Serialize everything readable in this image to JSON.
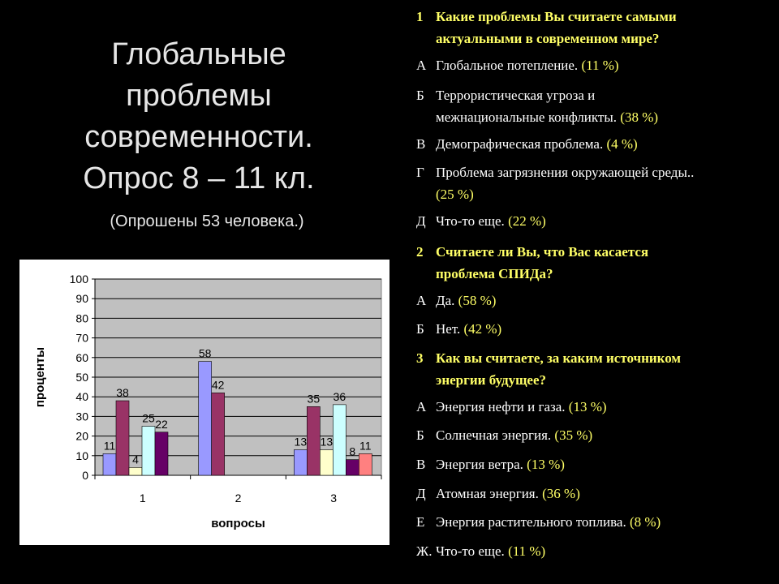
{
  "title_lines": [
    "Глобальные",
    "проблемы",
    "современности.",
    "Опрос 8 – 11 кл."
  ],
  "subtitle": "(Опрошены 53 человека.)",
  "chart_data": {
    "type": "bar",
    "categories": [
      "1",
      "2",
      "3"
    ],
    "xlabel": "вопросы",
    "ylabel": "проценты",
    "ylim": [
      0,
      100
    ],
    "yticks": [
      0,
      10,
      20,
      30,
      40,
      50,
      60,
      70,
      80,
      90,
      100
    ],
    "grid": true,
    "legend": "none",
    "groups": [
      {
        "category": "1",
        "bars": [
          {
            "value": 11,
            "label": "11",
            "color": "#9999ff"
          },
          {
            "value": 38,
            "label": "38",
            "color": "#993366"
          },
          {
            "value": 4,
            "label": "4",
            "color": "#ffffcc"
          },
          {
            "value": 25,
            "label": "25",
            "color": "#ccffff"
          },
          {
            "value": 22,
            "label": "22",
            "color": "#660066"
          }
        ]
      },
      {
        "category": "2",
        "bars": [
          {
            "value": 58,
            "label": "58",
            "color": "#9999ff"
          },
          {
            "value": 42,
            "label": "42",
            "color": "#993366"
          }
        ]
      },
      {
        "category": "3",
        "bars": [
          {
            "value": 13,
            "label": "13",
            "color": "#9999ff"
          },
          {
            "value": 35,
            "label": "35",
            "color": "#993366"
          },
          {
            "value": 13,
            "label": "13",
            "color": "#ffffcc"
          },
          {
            "value": 36,
            "label": "36",
            "color": "#ccffff"
          },
          {
            "value": 8,
            "label": "8",
            "color": "#660066"
          },
          {
            "value": 11,
            "label": "11",
            "color": "#ff8080"
          }
        ]
      }
    ]
  },
  "survey": [
    {
      "type": "q",
      "marker": "1",
      "lines": [
        "Какие проблемы Вы считаете самыми",
        "актуальными в современном мире?"
      ]
    },
    {
      "type": "a",
      "marker": "А",
      "lines": [
        "Глобальное потепление."
      ],
      "pct": "(11 %)"
    },
    {
      "type": "a",
      "marker": "Б",
      "lines": [
        "Террористическая угроза и",
        "межнациональные конфликты."
      ],
      "pct": "(38 %)"
    },
    {
      "type": "a",
      "marker": "В",
      "lines": [
        "Демографическая проблема."
      ],
      "pct": "(4 %)"
    },
    {
      "type": "a",
      "marker": "Г",
      "lines": [
        "Проблема загрязнения окружающей среды.."
      ],
      "pct": "(25 %)",
      "pct_newline": true
    },
    {
      "type": "a",
      "marker": "Д",
      "lines": [
        "Что-то еще."
      ],
      "pct": "(22 %)"
    },
    {
      "type": "q",
      "marker": "2",
      "lines": [
        "Считаете ли Вы, что Вас касается",
        "проблема СПИДа?"
      ]
    },
    {
      "type": "a",
      "marker": "А",
      "lines": [
        "Да."
      ],
      "pct": "(58 %)"
    },
    {
      "type": "a",
      "marker": "Б",
      "lines": [
        "Нет."
      ],
      "pct": "(42 %)"
    },
    {
      "type": "q",
      "marker": "3",
      "lines": [
        "Как вы считаете, за каким источником",
        "энергии будущее?"
      ]
    },
    {
      "type": "a",
      "marker": "А",
      "lines": [
        "Энергия нефти и газа."
      ],
      "pct": "(13 %)"
    },
    {
      "type": "a",
      "marker": "Б",
      "lines": [
        "Солнечная энергия."
      ],
      "pct": "(35 %)"
    },
    {
      "type": "a",
      "marker": "В",
      "lines": [
        "Энергия ветра."
      ],
      "pct": "(13 %)"
    },
    {
      "type": "a",
      "marker": "Д",
      "lines": [
        "Атомная энергия."
      ],
      "pct": "(36 %)"
    },
    {
      "type": "a",
      "marker": "Е",
      "lines": [
        "Энергия растительного топлива."
      ],
      "pct": "(8 %)"
    },
    {
      "type": "a",
      "marker": "Ж.",
      "lines": [
        "Что-то еще."
      ],
      "pct": "(11 %)"
    }
  ]
}
